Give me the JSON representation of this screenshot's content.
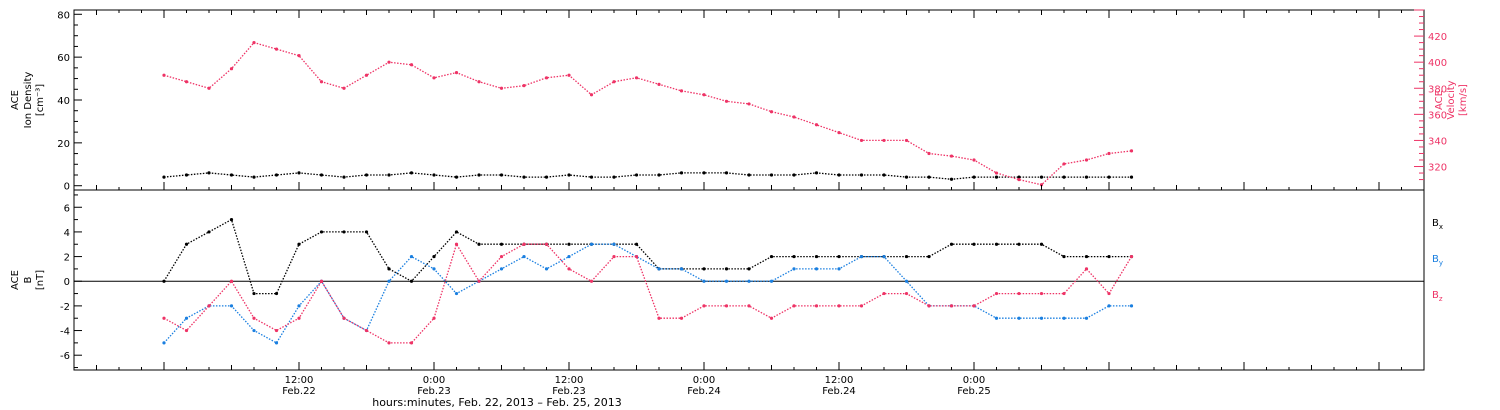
{
  "chart_data": [
    {
      "type": "scatter",
      "panel": "top",
      "left_axis": {
        "label_lines": [
          "ACE",
          "Ion Density",
          "[cm⁻³]"
        ],
        "ylim": [
          -2,
          82
        ],
        "ticks": [
          "0",
          "20",
          "40",
          "60",
          "80"
        ]
      },
      "right_axis": {
        "label_lines": [
          "ACE",
          "Velocity",
          "[km/s]"
        ],
        "ylim": [
          302,
          440
        ],
        "ticks": [
          "320",
          "340",
          "360",
          "380",
          "400",
          "420"
        ]
      },
      "series": [
        {
          "name": "Ion Density",
          "axis": "left",
          "color": "#000000",
          "x": [
            0,
            2,
            4,
            6,
            8,
            10,
            12,
            14,
            16,
            18,
            20,
            22,
            24,
            26,
            28,
            30,
            32,
            34,
            36,
            38,
            40,
            42,
            44,
            46,
            48,
            50,
            52,
            54,
            56,
            58,
            60,
            62,
            64,
            66,
            68,
            70,
            72,
            74,
            76,
            78,
            80,
            82,
            84,
            86
          ],
          "y": [
            4,
            5,
            6,
            5,
            4,
            5,
            6,
            5,
            4,
            5,
            5,
            6,
            5,
            4,
            5,
            5,
            4,
            4,
            5,
            4,
            4,
            5,
            5,
            6,
            6,
            6,
            5,
            5,
            5,
            6,
            5,
            5,
            5,
            4,
            4,
            3,
            4,
            4,
            4,
            4,
            4,
            4,
            4,
            4
          ]
        },
        {
          "name": "Velocity",
          "axis": "right",
          "color": "#ee3366",
          "x": [
            0,
            2,
            4,
            6,
            8,
            10,
            12,
            14,
            16,
            18,
            20,
            22,
            24,
            26,
            28,
            30,
            32,
            34,
            36,
            38,
            40,
            42,
            44,
            46,
            48,
            50,
            52,
            54,
            56,
            58,
            60,
            62,
            64,
            66,
            68,
            70,
            72,
            74,
            76,
            78,
            80,
            82,
            84,
            86
          ],
          "y": [
            390,
            385,
            380,
            395,
            415,
            410,
            405,
            385,
            380,
            390,
            400,
            398,
            388,
            392,
            385,
            380,
            382,
            388,
            390,
            375,
            385,
            388,
            383,
            378,
            375,
            370,
            368,
            362,
            358,
            352,
            346,
            340,
            340,
            340,
            330,
            328,
            325,
            315,
            310,
            306,
            322,
            325,
            330,
            332
          ]
        }
      ]
    },
    {
      "type": "scatter",
      "panel": "bottom",
      "left_axis": {
        "label_lines": [
          "ACE",
          "B",
          "[nT]"
        ],
        "ylim": [
          -7.2,
          7.4
        ],
        "ticks": [
          "6",
          "4",
          "2",
          "0",
          "-2",
          "-4",
          "-6"
        ]
      },
      "zero_line": true,
      "series": [
        {
          "name": "Bx",
          "color": "#000000",
          "x": [
            0,
            2,
            4,
            6,
            8,
            10,
            12,
            14,
            16,
            18,
            20,
            22,
            24,
            26,
            28,
            30,
            32,
            34,
            36,
            38,
            40,
            42,
            44,
            46,
            48,
            50,
            52,
            54,
            56,
            58,
            60,
            62,
            64,
            66,
            68,
            70,
            72,
            74,
            76,
            78,
            80,
            82,
            84,
            86
          ],
          "y": [
            0,
            3,
            4,
            5,
            -1,
            -1,
            3,
            4,
            4,
            4,
            1,
            0,
            2,
            4,
            3,
            3,
            3,
            3,
            3,
            3,
            3,
            3,
            1,
            1,
            1,
            1,
            1,
            2,
            2,
            2,
            2,
            2,
            2,
            2,
            2,
            3,
            3,
            3,
            3,
            3,
            2,
            2,
            2,
            2
          ]
        },
        {
          "name": "By",
          "color": "#1a7fe0",
          "x": [
            0,
            2,
            4,
            6,
            8,
            10,
            12,
            14,
            16,
            18,
            20,
            22,
            24,
            26,
            28,
            30,
            32,
            34,
            36,
            38,
            40,
            42,
            44,
            46,
            48,
            50,
            52,
            54,
            56,
            58,
            60,
            62,
            64,
            66,
            68,
            70,
            72,
            74,
            76,
            78,
            80,
            82,
            84,
            86
          ],
          "y": [
            -5,
            -3,
            -2,
            -2,
            -4,
            -5,
            -2,
            0,
            -3,
            -4,
            0,
            2,
            1,
            -1,
            0,
            1,
            2,
            1,
            2,
            3,
            3,
            2,
            1,
            1,
            0,
            0,
            0,
            0,
            1,
            1,
            1,
            2,
            2,
            0,
            -2,
            -2,
            -2,
            -3,
            -3,
            -3,
            -3,
            -3,
            -2,
            -2
          ]
        },
        {
          "name": "Bz",
          "color": "#ee3366",
          "x": [
            0,
            2,
            4,
            6,
            8,
            10,
            12,
            14,
            16,
            18,
            20,
            22,
            24,
            26,
            28,
            30,
            32,
            34,
            36,
            38,
            40,
            42,
            44,
            46,
            48,
            50,
            52,
            54,
            56,
            58,
            60,
            62,
            64,
            66,
            68,
            70,
            72,
            74,
            76,
            78,
            80,
            82,
            84,
            86
          ],
          "y": [
            -3,
            -4,
            -2,
            0,
            -3,
            -4,
            -3,
            0,
            -3,
            -4,
            -5,
            -5,
            -3,
            3,
            0,
            2,
            3,
            3,
            1,
            0,
            2,
            2,
            -3,
            -3,
            -2,
            -2,
            -2,
            -3,
            -2,
            -2,
            -2,
            -2,
            -1,
            -1,
            -2,
            -2,
            -2,
            -1,
            -1,
            -1,
            -1,
            1,
            -1,
            2
          ]
        }
      ],
      "legend": [
        {
          "label": "B",
          "sub": "x",
          "color": "#000000"
        },
        {
          "label": "B",
          "sub": "y",
          "color": "#1a7fe0"
        },
        {
          "label": "B",
          "sub": "z",
          "color": "#ee3366"
        }
      ]
    }
  ],
  "x_axis": {
    "range_hours": [
      -8,
      112
    ],
    "ticks": [
      {
        "h": 12,
        "line1": "12:00",
        "line2": "Feb.22"
      },
      {
        "h": 24,
        "line1": "0:00",
        "line2": "Feb.23"
      },
      {
        "h": 36,
        "line1": "12:00",
        "line2": "Feb.23"
      },
      {
        "h": 48,
        "line1": "0:00",
        "line2": "Feb.24"
      },
      {
        "h": 60,
        "line1": "12:00",
        "line2": "Feb.24"
      },
      {
        "h": 72,
        "line1": "0:00",
        "line2": "Feb.25"
      }
    ],
    "title": "hours:minutes, Feb. 22, 2013 – Feb. 25, 2013"
  }
}
